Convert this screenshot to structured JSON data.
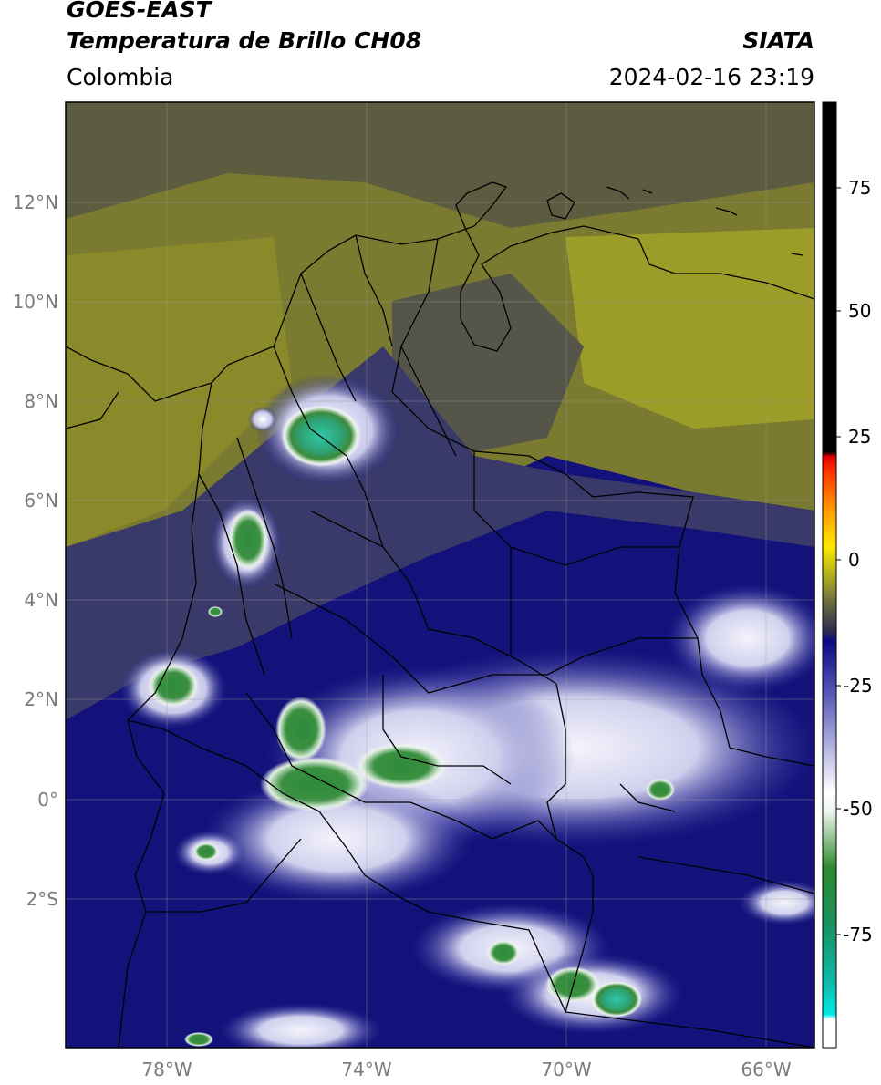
{
  "header": {
    "satellite": "GOES-EAST",
    "product": "Temperatura de Brillo CH08",
    "brand": "SIATA",
    "region": "Colombia",
    "timestamp": "2024-02-16 23:19"
  },
  "map": {
    "lat_ticks": [
      "12°N",
      "10°N",
      "8°N",
      "6°N",
      "4°N",
      "2°N",
      "0°",
      "2°S"
    ],
    "lon_ticks": [
      "78°W",
      "74°W",
      "70°W",
      "66°W"
    ],
    "extent": {
      "lon_min": -80,
      "lon_max": -65,
      "lat_min": -4.3,
      "lat_max": 14.1
    },
    "gridlines": true
  },
  "colorbar": {
    "ticks": [
      "75",
      "50",
      "25",
      "0",
      "-25",
      "-50",
      "-75"
    ],
    "range": [
      -95,
      90
    ],
    "colors": {
      "warm_top": "#000000",
      "red": "#e0200a",
      "orange": "#ff8800",
      "yellow": "#ffe800",
      "olive": "#7a7a2a",
      "navy": "#0a0a80",
      "white": "#ffffff",
      "green": "#2e8a2e",
      "cyan": "#00e0e0"
    }
  }
}
